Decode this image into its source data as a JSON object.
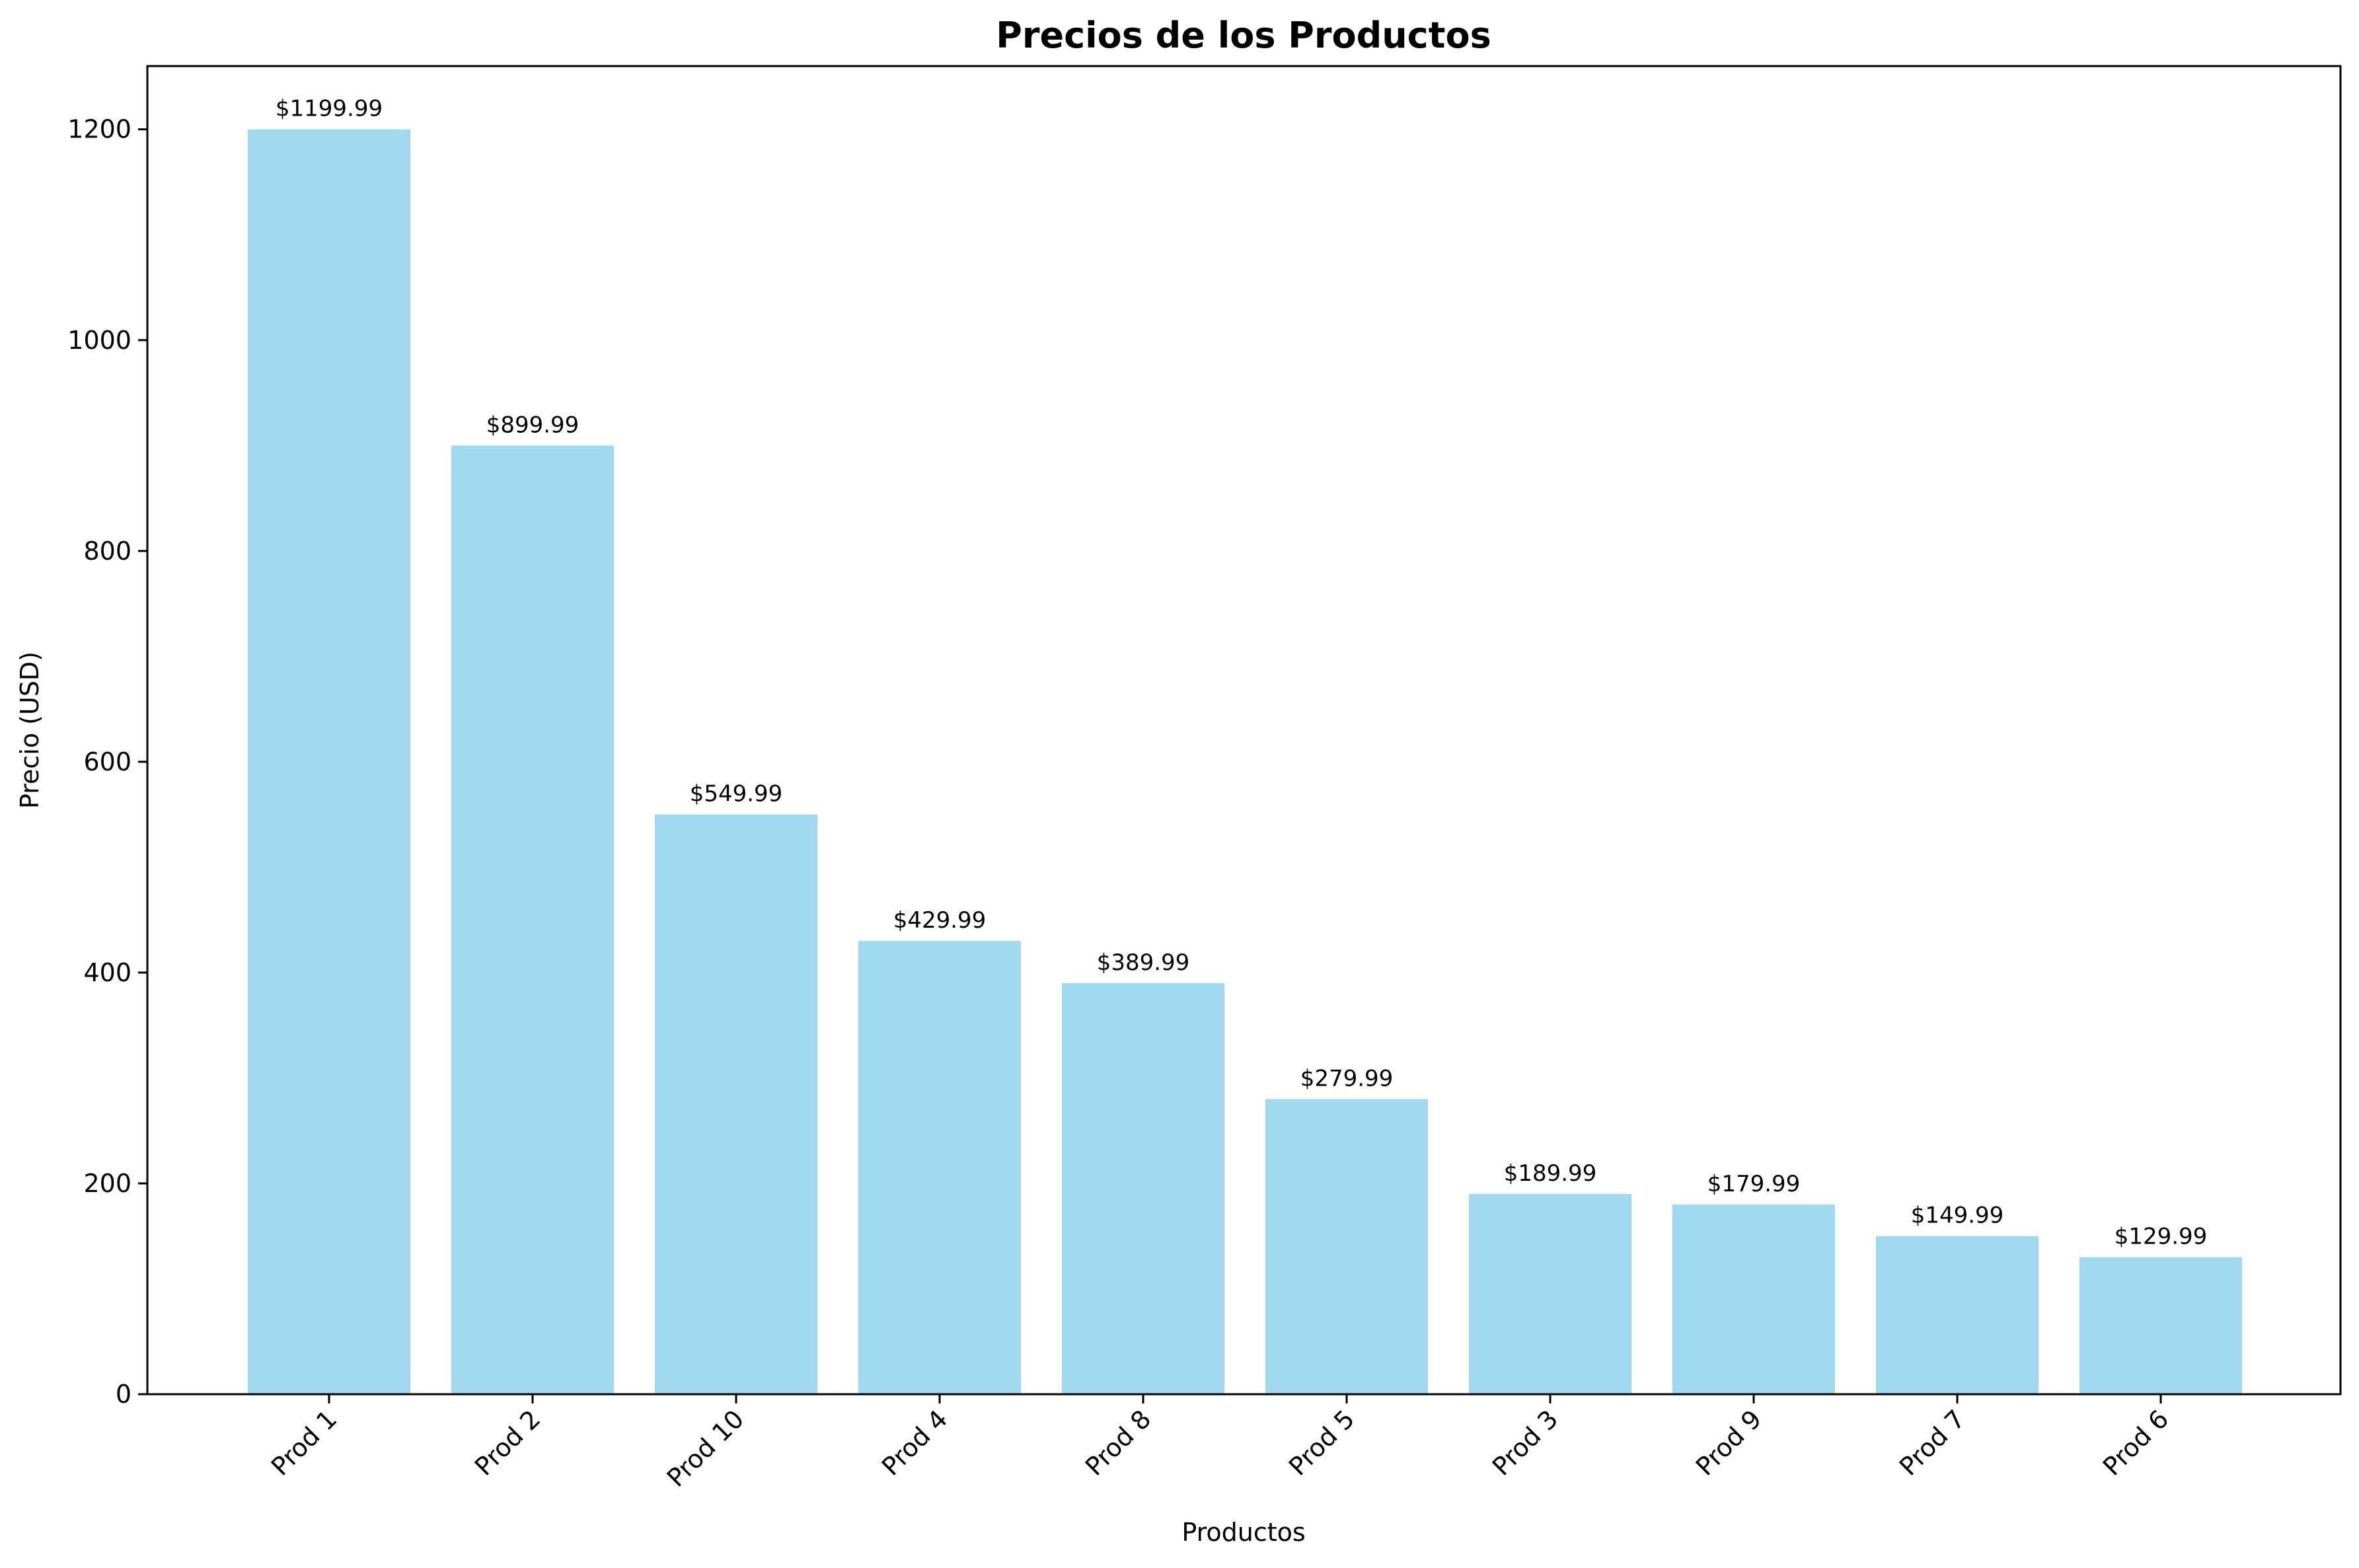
{
  "chart_data": {
    "type": "bar",
    "title": "Precios de los Productos",
    "xlabel": "Productos",
    "ylabel": "Precio (USD)",
    "categories": [
      "Prod 1",
      "Prod 2",
      "Prod 10",
      "Prod 4",
      "Prod 8",
      "Prod 5",
      "Prod 3",
      "Prod 9",
      "Prod 7",
      "Prod 6"
    ],
    "values": [
      1199.99,
      899.99,
      549.99,
      429.99,
      389.99,
      279.99,
      189.99,
      179.99,
      149.99,
      129.99
    ],
    "data_labels": [
      "$1199.99",
      "$899.99",
      "$549.99",
      "$429.99",
      "$389.99",
      "$279.99",
      "$189.99",
      "$179.99",
      "$149.99",
      "$129.99"
    ],
    "yticks": [
      0,
      200,
      400,
      600,
      800,
      1000,
      1200
    ],
    "ylim": [
      0,
      1260
    ],
    "bar_color": "#87ceeb",
    "bar_opacity": 0.8,
    "grid": false,
    "legend": "none"
  }
}
